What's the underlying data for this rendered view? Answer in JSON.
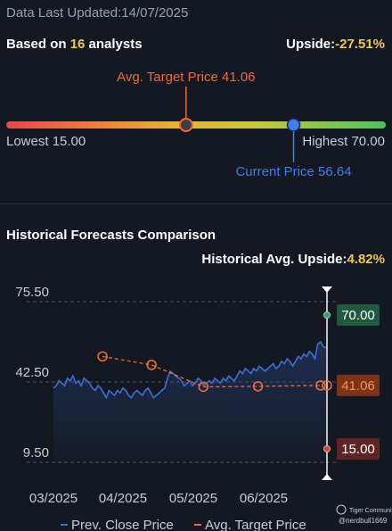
{
  "header": {
    "updated_label": "Data Last Updated:",
    "updated_date": "14/07/2025",
    "based_prefix": "Based on ",
    "analyst_count": "16",
    "based_suffix": " analysts",
    "upside_label": "Upside:",
    "upside_value": "-27.51%"
  },
  "range": {
    "avg_target_label": "Avg. Target Price",
    "avg_target_value": "41.06",
    "lowest_label": "Lowest",
    "lowest_value": "15.00",
    "highest_label": "Highest",
    "highest_value": "70.00",
    "current_label": "Current Price",
    "current_value": "56.64",
    "low": 15.0,
    "high": 70.0,
    "avg_target": 41.06,
    "current": 56.64
  },
  "history": {
    "title": "Historical Forecasts Comparison",
    "upside_label": "Historical Avg. Upside:",
    "upside_value": "4.82%"
  },
  "watermark": {
    "brand": "Tiger Community",
    "user": "@nerdbull1669"
  },
  "colors": {
    "background": "#141821",
    "price_line": "#3b6fd8",
    "target_dots": "#f06b3a",
    "high_badge": "#1f5a3e",
    "avg_badge": "#7a3417",
    "low_badge": "#6b2a2d"
  },
  "chart_data": {
    "type": "line",
    "yticks": [
      "75.50",
      "42.50",
      "9.50"
    ],
    "ylim": [
      9.5,
      75.5
    ],
    "xticks": [
      "03/2025",
      "04/2025",
      "05/2025",
      "06/2025"
    ],
    "legend": [
      "Prev. Close Price",
      "Avg. Target Price"
    ],
    "labels": {
      "high": "70.00",
      "avg": "41.06",
      "low": "15.00"
    },
    "series": [
      {
        "name": "Prev. Close Price",
        "values": [
          40,
          41,
          43,
          42,
          41,
          44,
          43,
          45,
          42,
          43,
          41,
          44,
          43,
          42,
          40,
          39,
          41,
          40,
          38,
          36,
          39,
          38,
          37,
          39,
          38,
          40,
          39,
          37,
          36,
          38,
          39,
          38,
          37,
          39,
          40,
          38,
          36,
          37,
          38,
          39,
          40,
          44,
          47,
          46,
          45,
          44,
          43,
          41,
          42,
          43,
          41,
          42,
          44,
          43,
          41,
          42,
          43,
          42,
          44,
          43,
          42,
          44,
          43,
          45,
          44,
          43,
          45,
          47,
          46,
          48,
          47,
          46,
          48,
          47,
          49,
          48,
          47,
          48,
          49,
          50,
          48,
          49,
          51,
          50,
          52,
          51,
          49,
          51,
          53,
          52,
          54,
          53,
          55,
          54,
          52,
          58,
          59,
          57,
          56.64
        ]
      },
      {
        "name": "Avg. Target Price",
        "points": [
          {
            "t": 0.18,
            "v": 53
          },
          {
            "t": 0.36,
            "v": 49.5
          },
          {
            "t": 0.55,
            "v": 40.5
          },
          {
            "t": 0.75,
            "v": 40.7
          },
          {
            "t": 0.98,
            "v": 41.06
          }
        ]
      }
    ]
  }
}
